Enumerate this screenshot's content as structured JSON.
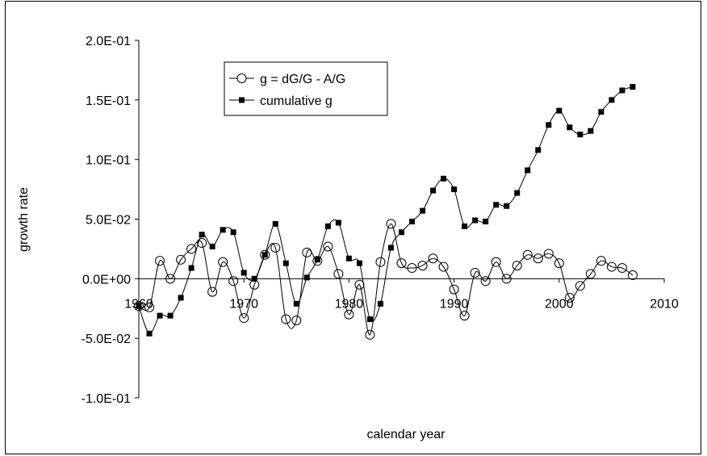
{
  "chart_data": {
    "type": "line",
    "title": "",
    "xlabel": "calendar year",
    "ylabel": "growth rate",
    "xlim": [
      1960,
      2010
    ],
    "ylim": [
      -0.1,
      0.2
    ],
    "x_ticks": [
      "1960",
      "1970",
      "1980",
      "1990",
      "2000",
      "2010"
    ],
    "y_ticks": [
      "-1.0E-01",
      "-5.0E-02",
      "0.0E+00",
      "5.0E-02",
      "1.0E-01",
      "1.5E-01",
      "2.0E-01"
    ],
    "x_tick_values": [
      1960,
      1970,
      1980,
      1990,
      2000,
      2010
    ],
    "y_tick_values": [
      -0.1,
      -0.05,
      0,
      0.05,
      0.1,
      0.15,
      0.2
    ],
    "grid": false,
    "legend_position": "top-left",
    "series": [
      {
        "name": "g = dG/G - A/G",
        "marker": "open-circle",
        "color": "#000000",
        "x": [
          1960,
          1961,
          1962,
          1963,
          1964,
          1965,
          1966,
          1967,
          1968,
          1969,
          1970,
          1971,
          1972,
          1973,
          1974,
          1975,
          1976,
          1977,
          1978,
          1979,
          1980,
          1981,
          1982,
          1983,
          1984,
          1985,
          1986,
          1987,
          1988,
          1989,
          1990,
          1991,
          1992,
          1993,
          1994,
          1995,
          1996,
          1997,
          1998,
          1999,
          2000,
          2001,
          2002,
          2003,
          2004,
          2005,
          2006,
          2007
        ],
        "y": [
          -0.023,
          -0.024,
          0.015,
          0.0,
          0.016,
          0.025,
          0.03,
          -0.011,
          0.014,
          -0.002,
          -0.033,
          -0.005,
          0.02,
          0.026,
          -0.034,
          -0.035,
          0.022,
          0.015,
          0.027,
          0.004,
          -0.03,
          -0.005,
          -0.047,
          0.014,
          0.046,
          0.013,
          0.009,
          0.011,
          0.017,
          0.01,
          -0.009,
          -0.031,
          0.005,
          -0.002,
          0.014,
          0.0,
          0.011,
          0.02,
          0.017,
          0.021,
          0.013,
          -0.016,
          -0.006,
          0.004,
          0.015,
          0.01,
          0.009,
          0.003
        ]
      },
      {
        "name": "cumulative g",
        "marker": "filled-square",
        "color": "#000000",
        "x": [
          1960,
          1961,
          1962,
          1963,
          1964,
          1965,
          1966,
          1967,
          1968,
          1969,
          1970,
          1971,
          1972,
          1973,
          1974,
          1975,
          1976,
          1977,
          1978,
          1979,
          1980,
          1981,
          1982,
          1983,
          1984,
          1985,
          1986,
          1987,
          1988,
          1989,
          1990,
          1991,
          1992,
          1993,
          1994,
          1995,
          1996,
          1997,
          1998,
          1999,
          2000,
          2001,
          2002,
          2003,
          2004,
          2005,
          2006,
          2007
        ],
        "y": [
          -0.023,
          -0.046,
          -0.031,
          -0.031,
          -0.016,
          0.009,
          0.037,
          0.027,
          0.041,
          0.039,
          0.005,
          0.0,
          0.02,
          0.046,
          0.013,
          -0.021,
          0.001,
          0.016,
          0.044,
          0.047,
          0.017,
          0.013,
          -0.034,
          -0.021,
          0.026,
          0.039,
          0.048,
          0.057,
          0.074,
          0.084,
          0.075,
          0.044,
          0.049,
          0.048,
          0.062,
          0.061,
          0.072,
          0.091,
          0.108,
          0.129,
          0.141,
          0.127,
          0.121,
          0.124,
          0.14,
          0.15,
          0.158,
          0.161
        ]
      }
    ]
  }
}
